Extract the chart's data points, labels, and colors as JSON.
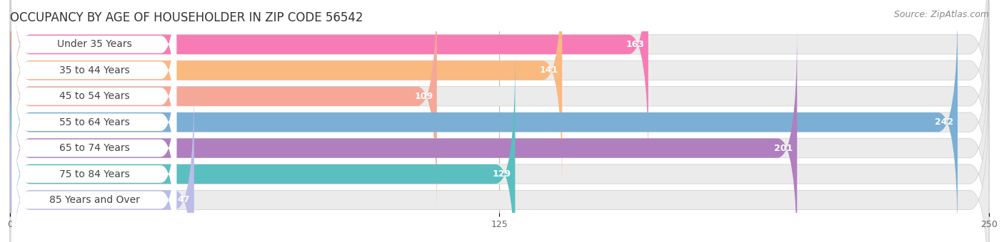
{
  "title": "OCCUPANCY BY AGE OF HOUSEHOLDER IN ZIP CODE 56542",
  "source": "Source: ZipAtlas.com",
  "categories": [
    "Under 35 Years",
    "35 to 44 Years",
    "45 to 54 Years",
    "55 to 64 Years",
    "65 to 74 Years",
    "75 to 84 Years",
    "85 Years and Over"
  ],
  "values": [
    163,
    141,
    109,
    242,
    201,
    129,
    47
  ],
  "bar_colors": [
    "#F77CB5",
    "#F9B97F",
    "#F5A898",
    "#7BAFD4",
    "#B07FBF",
    "#5BBFBF",
    "#BBBCE8"
  ],
  "bar_bg_colors": [
    "#EBEBEB",
    "#EBEBEB",
    "#EBEBEB",
    "#EBEBEB",
    "#EBEBEB",
    "#EBEBEB",
    "#EBEBEB"
  ],
  "xlim": [
    0,
    250
  ],
  "xticks": [
    0,
    125,
    250
  ],
  "background_color": "#FFFFFF",
  "title_fontsize": 12,
  "source_fontsize": 9,
  "label_fontsize": 10,
  "value_fontsize": 9
}
